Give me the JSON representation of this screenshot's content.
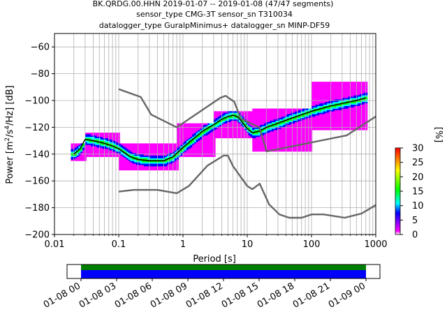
{
  "chart_data": {
    "type": "heatmap",
    "title_lines": [
      "BK.QRDG.00.HHN   2019-01-07 -- 2019-01-08  (47/47 segments)",
      "sensor_type CMG-3T sensor_sn T310034",
      "datalogger_type GuralpMinimus+ datalogger_sn MINP-DF59"
    ],
    "xlabel": "Period [s]",
    "ylabel": "Power [$m^2/s^4/Hz$] [dB]",
    "xscale": "log",
    "xlim": [
      0.01,
      1000
    ],
    "ylim": [
      -200,
      -50
    ],
    "x_ticks": [
      "0.01",
      "0.1",
      "1",
      "10",
      "100",
      "1000"
    ],
    "y_ticks": [
      "−200",
      "−180",
      "−160",
      "−140",
      "−120",
      "−100",
      "−80",
      "−60"
    ],
    "grid": true,
    "colorbar": {
      "label": "[%]",
      "range": [
        0,
        30
      ],
      "ticks": [
        "0",
        "5",
        "10",
        "15",
        "20",
        "25",
        "30"
      ],
      "colormap": [
        "#ffffff",
        "#ff00ff",
        "#0000ff",
        "#00ffff",
        "#00ff00",
        "#ffff00",
        "#ff8000",
        "#ff0000"
      ]
    },
    "series": [
      {
        "role": "mean_psd",
        "color": "#000000",
        "x": [
          0.02,
          0.025,
          0.03,
          0.04,
          0.06,
          0.08,
          0.1,
          0.15,
          0.2,
          0.3,
          0.5,
          0.7,
          1,
          1.5,
          2,
          3,
          4,
          5,
          6,
          7,
          8,
          10,
          12,
          15,
          20,
          30,
          50,
          100,
          200,
          500,
          700
        ],
        "y": [
          -140,
          -136,
          -129,
          -130,
          -132,
          -134,
          -136,
          -142,
          -144,
          -145,
          -145,
          -142,
          -135,
          -128,
          -123,
          -118,
          -114,
          -112,
          -111,
          -112,
          -115,
          -121,
          -124,
          -123,
          -120,
          -117,
          -113,
          -108,
          -104,
          -100,
          -98
        ]
      },
      {
        "role": "noise_model_high",
        "color": "#666666",
        "x": [
          0.1,
          0.22,
          0.32,
          0.8,
          3.8,
          4.6,
          6.3,
          7.9,
          15.4,
          20,
          354.8,
          1000
        ],
        "y": [
          -91.5,
          -97.4,
          -110.5,
          -120,
          -98,
          -96.5,
          -101,
          -113.5,
          -120,
          -138,
          -126,
          -112
        ]
      },
      {
        "role": "noise_model_low",
        "color": "#666666",
        "x": [
          0.1,
          0.17,
          0.4,
          0.8,
          1.24,
          2.4,
          4.3,
          5,
          6,
          10,
          12,
          15.6,
          21.9,
          31.6,
          45,
          70,
          101,
          154,
          328,
          600,
          1000
        ],
        "y": [
          -168,
          -166.7,
          -166.7,
          -169.2,
          -163.7,
          -148.6,
          -141.1,
          -141.1,
          -149,
          -163.8,
          -166.2,
          -162.1,
          -177.5,
          -185,
          -187.5,
          -187.5,
          -185,
          -185,
          -187.5,
          -184.4,
          -178
        ]
      }
    ],
    "density": [
      {
        "x_min": 0.018,
        "x_max": 0.03,
        "y_min": -145,
        "y_max": -132
      },
      {
        "x_min": 0.03,
        "x_max": 0.1,
        "y_min": -142,
        "y_max": -124
      },
      {
        "x_min": 0.1,
        "x_max": 0.8,
        "y_min": -152,
        "y_max": -132
      },
      {
        "x_min": 0.8,
        "x_max": 3,
        "y_min": -142,
        "y_max": -117
      },
      {
        "x_min": 3,
        "x_max": 12,
        "y_min": -128,
        "y_max": -108
      },
      {
        "x_min": 12,
        "x_max": 100,
        "y_min": -138,
        "y_max": -106
      },
      {
        "x_min": 100,
        "x_max": 700,
        "y_min": -122,
        "y_max": -86
      }
    ],
    "data_availability": {
      "x_ticks": [
        "01-08 00",
        "01-08 03",
        "01-08 06",
        "01-08 09",
        "01-08 12",
        "01-08 15",
        "01-08 18",
        "01-08 21",
        "01-09 00"
      ],
      "xlim": [
        "01-07 22:30",
        "01-09 01:30"
      ],
      "coverage": [
        "01-08 00",
        "01-09 00"
      ],
      "bar_colors": [
        "#008000",
        "#0000ff"
      ]
    }
  }
}
